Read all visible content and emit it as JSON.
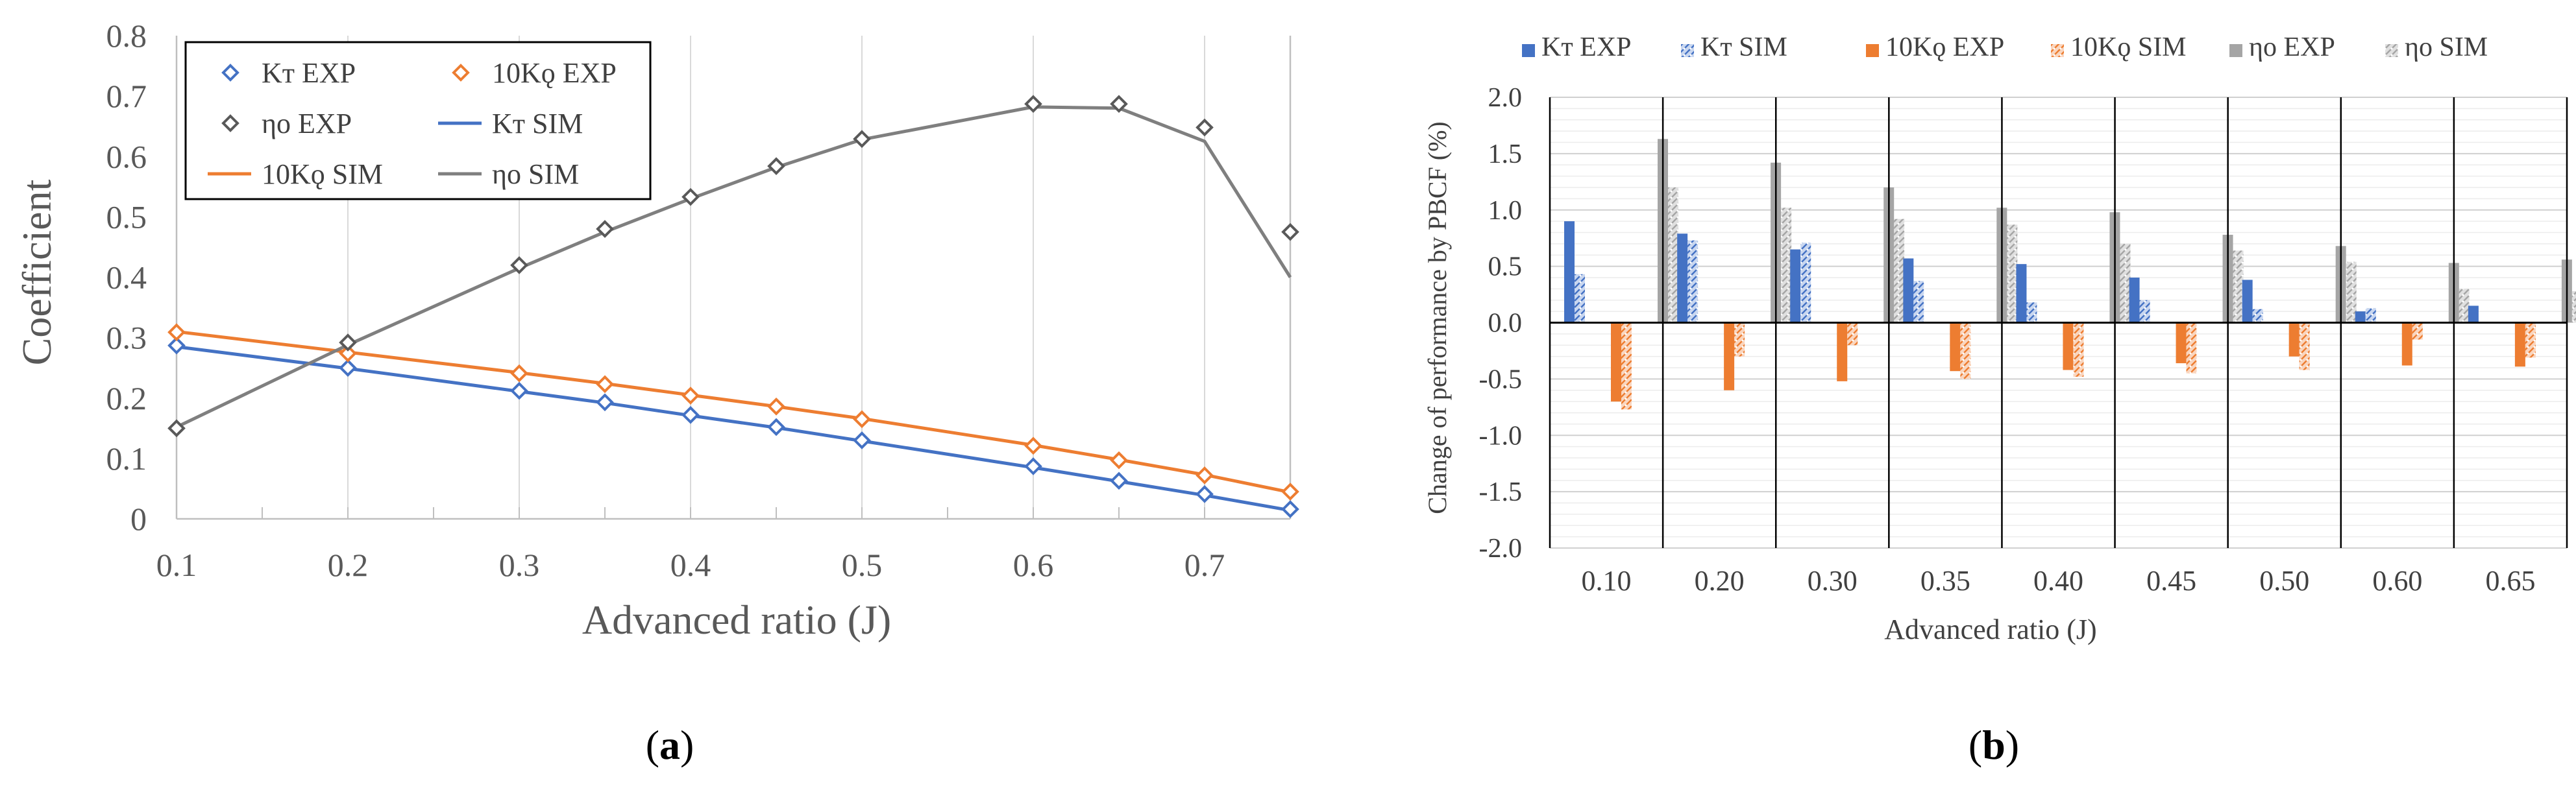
{
  "chart_data": [
    {
      "type": "line",
      "panel_label": "a",
      "xlabel": "Advanced ratio (J)",
      "ylabel": "Coefficient",
      "xlim": [
        0.1,
        0.75
      ],
      "ylim": [
        0,
        0.8
      ],
      "x_ticks": [
        "0.1",
        "0.2",
        "0.3",
        "0.4",
        "0.5",
        "0.6",
        "0.7"
      ],
      "y_ticks": [
        "0",
        "0.1",
        "0.2",
        "0.3",
        "0.4",
        "0.5",
        "0.6",
        "0.7",
        "0.8"
      ],
      "grid": "vertical",
      "legend_position": "top-left",
      "series": [
        {
          "name": "Kт EXP",
          "kind": "markers",
          "marker": "diamond",
          "color": "#4472c4",
          "x": [
            0.1,
            0.2,
            0.3,
            0.35,
            0.4,
            0.45,
            0.5,
            0.6,
            0.65,
            0.7,
            0.75
          ],
          "y": [
            0.287,
            0.25,
            0.212,
            0.193,
            0.172,
            0.152,
            0.13,
            0.087,
            0.063,
            0.041,
            0.016
          ]
        },
        {
          "name": "10Kǫ EXP",
          "kind": "markers",
          "marker": "diamond",
          "color": "#ed7d31",
          "x": [
            0.1,
            0.2,
            0.3,
            0.35,
            0.4,
            0.45,
            0.5,
            0.6,
            0.65,
            0.7,
            0.75
          ],
          "y": [
            0.309,
            0.274,
            0.241,
            0.223,
            0.204,
            0.186,
            0.165,
            0.121,
            0.097,
            0.072,
            0.045
          ]
        },
        {
          "name": "ηo EXP",
          "kind": "markers",
          "marker": "diamond",
          "color": "#595959",
          "x": [
            0.1,
            0.2,
            0.3,
            0.35,
            0.4,
            0.45,
            0.5,
            0.6,
            0.65,
            0.7,
            0.75
          ],
          "y": [
            0.15,
            0.292,
            0.42,
            0.48,
            0.533,
            0.584,
            0.629,
            0.687,
            0.687,
            0.648,
            0.475
          ]
        },
        {
          "name": "Kт SIM",
          "kind": "line",
          "color": "#4472c4",
          "x": [
            0.1,
            0.2,
            0.3,
            0.35,
            0.4,
            0.45,
            0.5,
            0.6,
            0.65,
            0.7,
            0.75
          ],
          "y": [
            0.285,
            0.249,
            0.211,
            0.192,
            0.171,
            0.151,
            0.129,
            0.085,
            0.062,
            0.039,
            0.014
          ]
        },
        {
          "name": "10Kǫ SIM",
          "kind": "line",
          "color": "#ed7d31",
          "x": [
            0.1,
            0.2,
            0.3,
            0.35,
            0.4,
            0.45,
            0.5,
            0.6,
            0.65,
            0.7,
            0.75
          ],
          "y": [
            0.31,
            0.276,
            0.242,
            0.224,
            0.205,
            0.186,
            0.166,
            0.122,
            0.098,
            0.073,
            0.044
          ]
        },
        {
          "name": "ηo SIM",
          "kind": "line",
          "color": "#7f7f7f",
          "x": [
            0.1,
            0.2,
            0.3,
            0.35,
            0.4,
            0.45,
            0.5,
            0.6,
            0.65,
            0.7,
            0.75
          ],
          "y": [
            0.152,
            0.288,
            0.415,
            0.475,
            0.53,
            0.582,
            0.628,
            0.682,
            0.68,
            0.625,
            0.4
          ]
        }
      ]
    },
    {
      "type": "bar",
      "panel_label": "b",
      "xlabel": "Advanced ratio (J)",
      "ylabel": "Change of performance by PBCF (%)",
      "categories": [
        "0.10",
        "0.20",
        "0.30",
        "0.35",
        "0.40",
        "0.45",
        "0.50",
        "0.60",
        "0.65"
      ],
      "ylim": [
        -2.0,
        2.0
      ],
      "y_ticks": [
        "-2.0",
        "-1.5",
        "-1.0",
        "-0.5",
        "0.0",
        "0.5",
        "1.0",
        "1.5",
        "2.0"
      ],
      "grid": "horizontal",
      "legend_position": "top",
      "series": [
        {
          "name": "Kт EXP",
          "color": "#4472c4",
          "pattern": "solid",
          "values": [
            0.9,
            0.79,
            0.65,
            0.57,
            0.52,
            0.4,
            0.38,
            0.1,
            0.15
          ]
        },
        {
          "name": "Kт SIM",
          "color": "#4472c4",
          "pattern": "hatched",
          "values": [
            0.43,
            0.73,
            0.71,
            0.37,
            0.18,
            0.2,
            0.12,
            0.13,
            0.0
          ]
        },
        {
          "name": "10Kǫ EXP",
          "color": "#ed7d31",
          "pattern": "solid",
          "values": [
            -0.7,
            -0.6,
            -0.52,
            -0.43,
            -0.42,
            -0.36,
            -0.3,
            -0.38,
            -0.39
          ]
        },
        {
          "name": "10Kǫ SIM",
          "color": "#ed7d31",
          "pattern": "hatched",
          "values": [
            -0.77,
            -0.3,
            -0.2,
            -0.5,
            -0.48,
            -0.45,
            -0.42,
            -0.15,
            -0.31
          ]
        },
        {
          "name": "ηo EXP",
          "color": "#a5a5a5",
          "pattern": "solid",
          "values": [
            1.63,
            1.42,
            1.2,
            1.02,
            0.98,
            0.78,
            0.68,
            0.53,
            0.56
          ]
        },
        {
          "name": "ηo SIM",
          "color": "#a5a5a5",
          "pattern": "hatched",
          "values": [
            1.2,
            1.02,
            0.92,
            0.87,
            0.7,
            0.64,
            0.54,
            0.3,
            0.28
          ]
        }
      ]
    }
  ]
}
